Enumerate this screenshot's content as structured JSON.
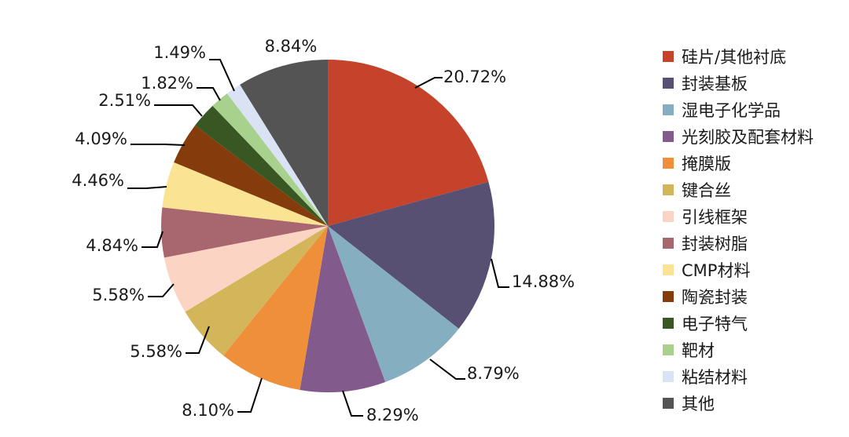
{
  "chart_data": {
    "type": "pie",
    "start_angle_deg": 0,
    "direction": "clockwise",
    "legend_position": "right",
    "slices": [
      {
        "name": "硅片/其他衬底",
        "value": 20.72,
        "label": "20.72%",
        "color": "#C4432A"
      },
      {
        "name": "封装基板",
        "value": 14.88,
        "label": "14.88%",
        "color": "#575073"
      },
      {
        "name": "湿电子化学品",
        "value": 8.79,
        "label": "8.79%",
        "color": "#85AEC0"
      },
      {
        "name": "光刻胶及配套材料",
        "value": 8.29,
        "label": "8.29%",
        "color": "#825A8C"
      },
      {
        "name": "掩膜版",
        "value": 8.1,
        "label": "8.10%",
        "color": "#F08F3A"
      },
      {
        "name": "键合丝",
        "value": 5.58,
        "label": "5.58%",
        "color": "#D3B55A"
      },
      {
        "name": "引线框架",
        "value": 5.58,
        "label": "5.58%",
        "color": "#FBD4C4"
      },
      {
        "name": "封装树脂",
        "value": 4.84,
        "label": "4.84%",
        "color": "#A8666F"
      },
      {
        "name": "CMP材料",
        "value": 4.46,
        "label": "4.46%",
        "color": "#FBE394"
      },
      {
        "name": "陶瓷封装",
        "value": 4.09,
        "label": "4.09%",
        "color": "#843C0C"
      },
      {
        "name": "电子特气",
        "value": 2.51,
        "label": "2.51%",
        "color": "#385723"
      },
      {
        "name": "靶材",
        "value": 1.82,
        "label": "1.82%",
        "color": "#A9D18E"
      },
      {
        "name": "粘结材料",
        "value": 1.49,
        "label": "1.49%",
        "color": "#DAE3F3"
      },
      {
        "name": "其他",
        "value": 8.84,
        "label": "8.84%",
        "color": "#545454"
      }
    ]
  }
}
